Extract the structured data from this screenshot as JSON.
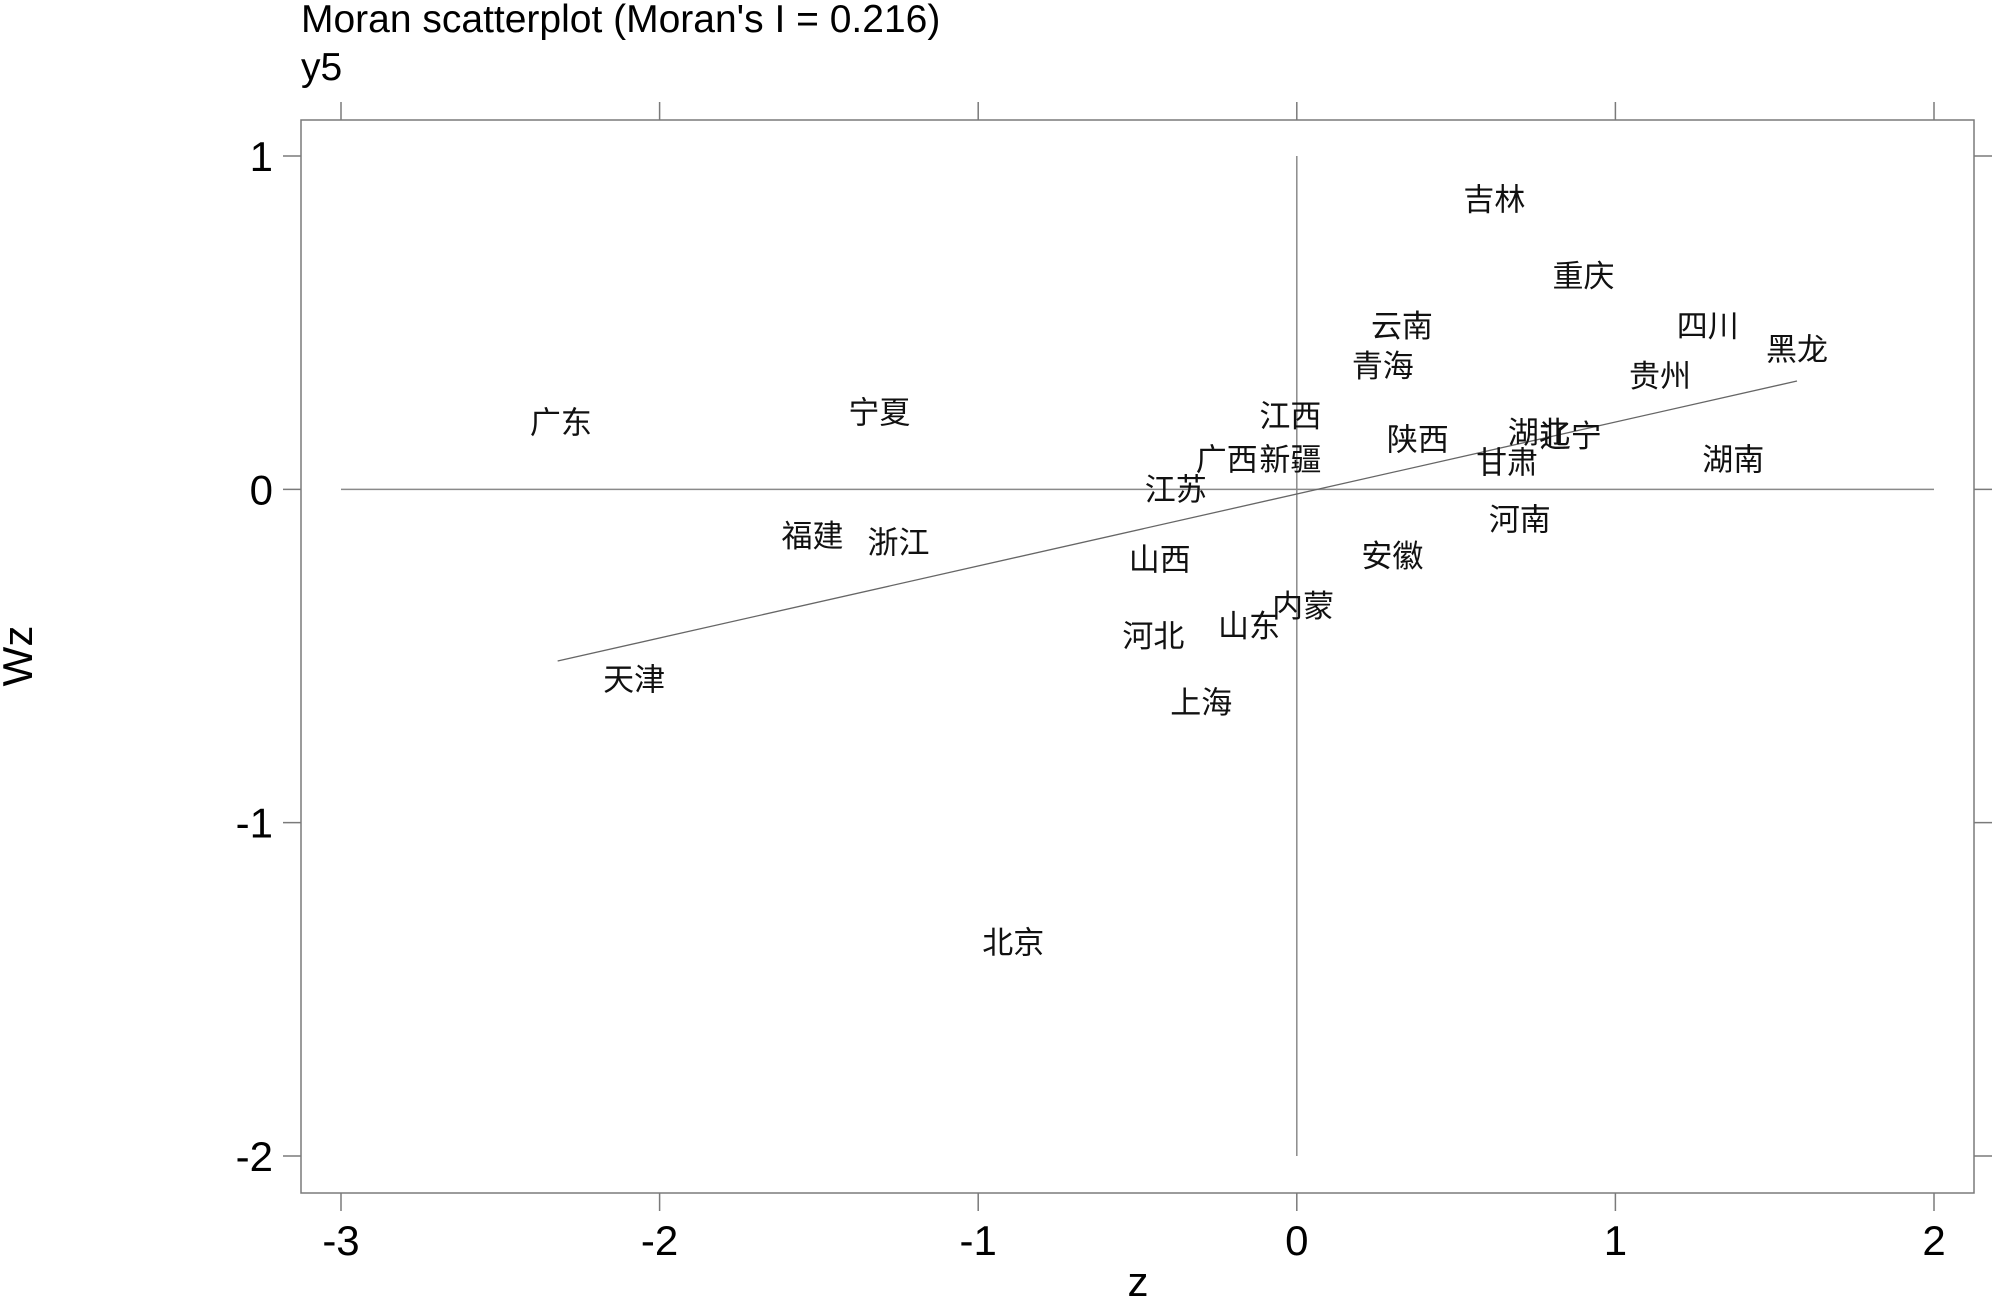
{
  "chart_data": {
    "type": "scatter",
    "title": "Moran scatterplot (Moran's I = 0.216)",
    "subtitle": "y5",
    "xlabel": "z",
    "ylabel": "Wz",
    "xlim": [
      -3,
      2
    ],
    "ylim": [
      -2,
      1
    ],
    "xticks": [
      "-3",
      "-2",
      "-1",
      "0",
      "1",
      "2"
    ],
    "yticks": [
      "1",
      "0",
      "-1",
      "-2"
    ],
    "grid": false,
    "reference_lines": {
      "x": 0,
      "y": 0
    },
    "fit_line": {
      "x": [
        -2.32,
        1.57
      ],
      "y": [
        -0.515,
        0.325
      ]
    },
    "points": [
      {
        "label": "吉林",
        "x": 0.62,
        "y": 0.87
      },
      {
        "label": "重庆",
        "x": 0.9,
        "y": 0.64
      },
      {
        "label": "四川",
        "x": 1.29,
        "y": 0.49
      },
      {
        "label": "黑龙",
        "x": 1.57,
        "y": 0.42
      },
      {
        "label": "云南",
        "x": 0.33,
        "y": 0.49
      },
      {
        "label": "青海",
        "x": 0.27,
        "y": 0.37
      },
      {
        "label": "贵州",
        "x": 1.14,
        "y": 0.34
      },
      {
        "label": "广东",
        "x": -2.31,
        "y": 0.2
      },
      {
        "label": "宁夏",
        "x": -1.31,
        "y": 0.23
      },
      {
        "label": "江西",
        "x": -0.02,
        "y": 0.22
      },
      {
        "label": "湖北",
        "x": 0.76,
        "y": 0.17
      },
      {
        "label": "辽宁",
        "x": 0.86,
        "y": 0.16
      },
      {
        "label": "陕西",
        "x": 0.38,
        "y": 0.15
      },
      {
        "label": "广西",
        "x": -0.22,
        "y": 0.09
      },
      {
        "label": "新疆",
        "x": -0.02,
        "y": 0.09
      },
      {
        "label": "甘肃",
        "x": 0.66,
        "y": 0.08
      },
      {
        "label": "湖南",
        "x": 1.37,
        "y": 0.09
      },
      {
        "label": "江苏",
        "x": -0.38,
        "y": 0.0
      },
      {
        "label": "河南",
        "x": 0.7,
        "y": -0.09
      },
      {
        "label": "福建",
        "x": -1.52,
        "y": -0.14
      },
      {
        "label": "浙江",
        "x": -1.25,
        "y": -0.16
      },
      {
        "label": "安徽",
        "x": 0.3,
        "y": -0.2
      },
      {
        "label": "山西",
        "x": -0.43,
        "y": -0.21
      },
      {
        "label": "内蒙",
        "x": 0.02,
        "y": -0.35
      },
      {
        "label": "山东",
        "x": -0.15,
        "y": -0.41
      },
      {
        "label": "河北",
        "x": -0.45,
        "y": -0.44
      },
      {
        "label": "天津",
        "x": -2.08,
        "y": -0.57
      },
      {
        "label": "上海",
        "x": -0.3,
        "y": -0.64
      },
      {
        "label": "北京",
        "x": -0.89,
        "y": -1.36
      }
    ]
  }
}
